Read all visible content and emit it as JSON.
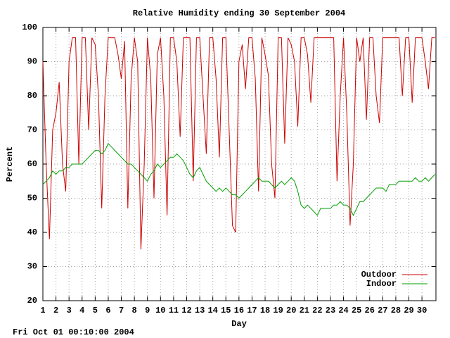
{
  "chart_data": {
    "type": "line",
    "title": "Relative Humidity ending 30 September 2004",
    "x_label": "Day",
    "y_label": "Percent",
    "footer": "Fri Oct 01 00:10:00 2004",
    "x": [
      1,
      1.25,
      1.5,
      1.75,
      2,
      2.25,
      2.5,
      2.75,
      3,
      3.25,
      3.5,
      3.75,
      4,
      4.25,
      4.5,
      4.75,
      5,
      5.25,
      5.5,
      5.75,
      6,
      6.25,
      6.5,
      6.75,
      7,
      7.25,
      7.5,
      7.75,
      8,
      8.25,
      8.5,
      8.75,
      9,
      9.25,
      9.5,
      9.75,
      10,
      10.25,
      10.5,
      10.75,
      11,
      11.25,
      11.5,
      11.75,
      12,
      12.25,
      12.5,
      12.75,
      13,
      13.25,
      13.5,
      13.75,
      14,
      14.25,
      14.5,
      14.75,
      15,
      15.25,
      15.5,
      15.75,
      16,
      16.25,
      16.5,
      16.75,
      17,
      17.25,
      17.5,
      17.75,
      18,
      18.25,
      18.5,
      18.75,
      19,
      19.25,
      19.5,
      19.75,
      20,
      20.25,
      20.5,
      20.75,
      21,
      21.25,
      21.5,
      21.75,
      22,
      22.25,
      22.5,
      22.75,
      23,
      23.25,
      23.5,
      23.75,
      24,
      24.25,
      24.5,
      24.75,
      25,
      25.25,
      25.5,
      25.75,
      26,
      26.25,
      26.5,
      26.75,
      27,
      27.25,
      27.5,
      27.75,
      28,
      28.25,
      28.5,
      28.75,
      29,
      29.25,
      29.5,
      29.75,
      30,
      30.25,
      30.5,
      30.75,
      31
    ],
    "series": [
      {
        "name": "Outdoor",
        "color": "#cc0000",
        "values": [
          90,
          60,
          38,
          70,
          75,
          84,
          60,
          52,
          90,
          97,
          97,
          60,
          97,
          97,
          70,
          97,
          95,
          80,
          47,
          80,
          97,
          97,
          97,
          92,
          85,
          96,
          47,
          85,
          97,
          90,
          35,
          60,
          97,
          85,
          50,
          92,
          97,
          80,
          45,
          97,
          97,
          90,
          68,
          97,
          97,
          97,
          55,
          97,
          97,
          80,
          63,
          97,
          97,
          85,
          62,
          97,
          97,
          70,
          42,
          40,
          90,
          95,
          82,
          97,
          97,
          85,
          52,
          97,
          92,
          86,
          60,
          50,
          97,
          97,
          66,
          97,
          95,
          90,
          71,
          97,
          97,
          92,
          78,
          97,
          97,
          97,
          97,
          97,
          97,
          97,
          55,
          80,
          97,
          75,
          42,
          60,
          97,
          90,
          97,
          73,
          97,
          97,
          80,
          72,
          97,
          97,
          97,
          97,
          97,
          97,
          80,
          97,
          97,
          78,
          97,
          97,
          97,
          90,
          82,
          97,
          97
        ]
      },
      {
        "name": "Indoor",
        "color": "#00a000",
        "values": [
          54,
          55,
          56,
          58,
          57,
          58,
          58,
          59,
          59,
          60,
          60,
          60,
          60,
          61,
          62,
          63,
          64,
          64,
          63,
          64,
          66,
          65,
          64,
          63,
          62,
          61,
          60,
          60,
          59,
          58,
          57,
          56,
          55,
          57,
          58,
          60,
          59,
          60,
          61,
          62,
          62,
          63,
          62,
          61,
          59,
          57,
          56,
          58,
          59,
          57,
          55,
          54,
          53,
          52,
          53,
          52,
          53,
          52,
          51,
          51,
          50,
          51,
          52,
          53,
          54,
          55,
          56,
          55,
          55,
          55,
          54,
          53,
          54,
          55,
          54,
          55,
          56,
          55,
          52,
          48,
          47,
          48,
          47,
          46,
          45,
          47,
          47,
          47,
          47,
          48,
          48,
          49,
          48,
          48,
          47,
          45,
          47,
          49,
          49,
          50,
          51,
          52,
          53,
          53,
          53,
          52,
          54,
          54,
          54,
          55,
          55,
          55,
          55,
          55,
          56,
          55,
          55,
          56,
          55,
          56,
          57
        ]
      }
    ],
    "xlim": [
      1,
      31.07
    ],
    "ylim": [
      20,
      100
    ],
    "xticks": [
      1,
      2,
      3,
      4,
      5,
      6,
      7,
      8,
      9,
      10,
      11,
      12,
      13,
      14,
      15,
      16,
      17,
      18,
      19,
      20,
      21,
      22,
      23,
      24,
      25,
      26,
      27,
      28,
      29,
      30
    ],
    "yticks": [
      20,
      30,
      40,
      50,
      60,
      70,
      80,
      90,
      100
    ],
    "grid": true,
    "legend": "bottom right"
  }
}
